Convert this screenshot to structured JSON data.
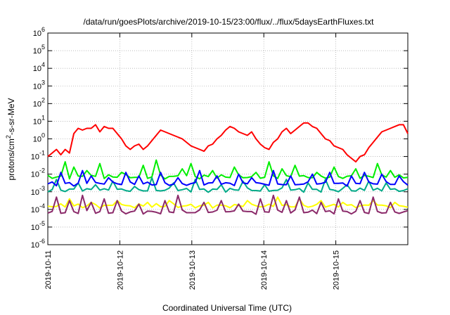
{
  "chart_data": {
    "type": "line",
    "title": "/data/run/goesPlots/archive/2019-10-15/23:00/flux/../flux/5daysEarthFluxes.txt",
    "xlabel": "Coordinated Universal Time (UTC)",
    "ylabel": "protons/cm2-s-sr-MeV",
    "ylabel_parts": {
      "main": "protons/cm",
      "sup": "2",
      "rest": "-s-sr-MeV"
    },
    "yscale": "log",
    "ylim_exp": [
      -6,
      6
    ],
    "y_ticks": [
      {
        "mant": "10",
        "exp": "-6"
      },
      {
        "mant": "10",
        "exp": "-5"
      },
      {
        "mant": "10",
        "exp": "-4"
      },
      {
        "mant": "10",
        "exp": "-3"
      },
      {
        "mant": "10",
        "exp": "-2"
      },
      {
        "mant": "10",
        "exp": "-1"
      },
      {
        "mant": "10",
        "exp": "0"
      },
      {
        "mant": "10",
        "exp": "1"
      },
      {
        "mant": "10",
        "exp": "2"
      },
      {
        "mant": "10",
        "exp": "3"
      },
      {
        "mant": "10",
        "exp": "4"
      },
      {
        "mant": "10",
        "exp": "5"
      },
      {
        "mant": "10",
        "exp": "6"
      }
    ],
    "x_range_days": [
      0,
      5
    ],
    "x_ticks": [
      {
        "day": 0,
        "label": "2019-10-11"
      },
      {
        "day": 1,
        "label": "2019-10-12"
      },
      {
        "day": 2,
        "label": "2019-10-13"
      },
      {
        "day": 3,
        "label": "2019-10-14"
      },
      {
        "day": 4,
        "label": "2019-10-15"
      }
    ],
    "grid": true,
    "series": [
      {
        "color": "#ff0000",
        "log_values": [
          -1.0,
          -0.8,
          -0.6,
          -0.9,
          -0.6,
          -0.8,
          0.3,
          0.6,
          0.5,
          0.6,
          0.6,
          0.8,
          0.4,
          0.7,
          0.6,
          0.6,
          0.3,
          0.0,
          -0.4,
          -0.6,
          -0.4,
          -0.3,
          -0.6,
          -0.4,
          -0.1,
          0.2,
          0.5,
          0.4,
          0.3,
          0.2,
          0.1,
          0.0,
          -0.2,
          -0.4,
          -0.5,
          -0.6,
          -0.7,
          -0.4,
          -0.3,
          0.0,
          0.2,
          0.5,
          0.7,
          0.6,
          0.4,
          0.3,
          0.2,
          0.4,
          0.0,
          -0.3,
          -0.5,
          -0.6,
          -0.2,
          0.0,
          0.4,
          0.6,
          0.3,
          0.5,
          0.7,
          0.9,
          0.9,
          0.7,
          0.6,
          0.3,
          0.0,
          -0.1,
          -0.4,
          -0.5,
          -0.6,
          -0.9,
          -1.1,
          -1.3,
          -1.0,
          -0.9,
          -0.5,
          -0.2,
          0.1,
          0.4,
          0.5,
          0.6,
          0.7,
          0.8,
          0.8,
          0.3
        ]
      },
      {
        "color": "#00ee00",
        "base": -2.15,
        "spikes": [
          [
            4,
            -1.3
          ],
          [
            6,
            -1.6
          ],
          [
            9,
            -1.8
          ],
          [
            12,
            -1.4
          ],
          [
            17,
            -1.9
          ],
          [
            22,
            -1.5
          ],
          [
            25,
            -1.2
          ],
          [
            31,
            -1.7
          ],
          [
            33,
            -1.4
          ],
          [
            38,
            -1.8
          ],
          [
            43,
            -1.6
          ],
          [
            48,
            -1.9
          ],
          [
            51,
            -1.3
          ],
          [
            54,
            -1.7
          ],
          [
            57,
            -1.5
          ],
          [
            62,
            -1.9
          ],
          [
            66,
            -1.6
          ],
          [
            71,
            -1.7
          ],
          [
            76,
            -1.4
          ],
          [
            79,
            -1.8
          ]
        ]
      },
      {
        "color": "#00aa88",
        "base": -2.9,
        "spikes": [
          [
            2,
            -2.3
          ],
          [
            7,
            -2.5
          ],
          [
            11,
            -2.6
          ],
          [
            15,
            -2.4
          ],
          [
            20,
            -2.7
          ],
          [
            24,
            -2.2
          ],
          [
            29,
            -2.5
          ],
          [
            34,
            -2.3
          ],
          [
            40,
            -2.6
          ],
          [
            45,
            -2.4
          ],
          [
            50,
            -2.6
          ],
          [
            55,
            -2.3
          ],
          [
            60,
            -2.5
          ],
          [
            64,
            -2.3
          ],
          [
            69,
            -2.6
          ],
          [
            74,
            -2.4
          ],
          [
            78,
            -2.5
          ]
        ]
      },
      {
        "color": "#0000ff",
        "base": -2.55,
        "spikes": [
          [
            3,
            -1.9
          ],
          [
            8,
            -1.8
          ],
          [
            10,
            -2.1
          ],
          [
            14,
            -2.2
          ],
          [
            18,
            -1.9
          ],
          [
            21,
            -2.1
          ],
          [
            26,
            -1.9
          ],
          [
            30,
            -2.2
          ],
          [
            35,
            -1.8
          ],
          [
            39,
            -2.1
          ],
          [
            44,
            -2.0
          ],
          [
            47,
            -2.2
          ],
          [
            52,
            -1.8
          ],
          [
            56,
            -2.1
          ],
          [
            61,
            -2.0
          ],
          [
            65,
            -1.9
          ],
          [
            70,
            -2.1
          ],
          [
            73,
            -1.9
          ],
          [
            77,
            -2.0
          ],
          [
            81,
            -2.1
          ]
        ]
      },
      {
        "color": "#ffff00",
        "base": -3.8,
        "spikes": [
          [
            5,
            -3.4
          ],
          [
            10,
            -3.6
          ],
          [
            16,
            -3.5
          ],
          [
            23,
            -3.6
          ],
          [
            28,
            -3.5
          ],
          [
            37,
            -3.6
          ],
          [
            46,
            -3.5
          ],
          [
            53,
            -3.3
          ],
          [
            58,
            -3.4
          ],
          [
            63,
            -3.5
          ],
          [
            68,
            -3.6
          ],
          [
            75,
            -3.5
          ],
          [
            80,
            -3.6
          ]
        ]
      },
      {
        "color": "#8b2a6a",
        "base": -4.15,
        "spikes": [
          [
            2,
            -3.3
          ],
          [
            5,
            -3.5
          ],
          [
            8,
            -3.2
          ],
          [
            10,
            -3.6
          ],
          [
            13,
            -3.4
          ],
          [
            16,
            -3.5
          ],
          [
            21,
            -3.7
          ],
          [
            27,
            -3.5
          ],
          [
            30,
            -3.2
          ],
          [
            36,
            -3.6
          ],
          [
            40,
            -3.5
          ],
          [
            44,
            -3.7
          ],
          [
            49,
            -3.4
          ],
          [
            52,
            -3.2
          ],
          [
            55,
            -3.5
          ],
          [
            58,
            -3.3
          ],
          [
            63,
            -3.6
          ],
          [
            67,
            -3.4
          ],
          [
            72,
            -3.5
          ],
          [
            75,
            -3.3
          ],
          [
            79,
            -3.6
          ]
        ]
      }
    ]
  }
}
